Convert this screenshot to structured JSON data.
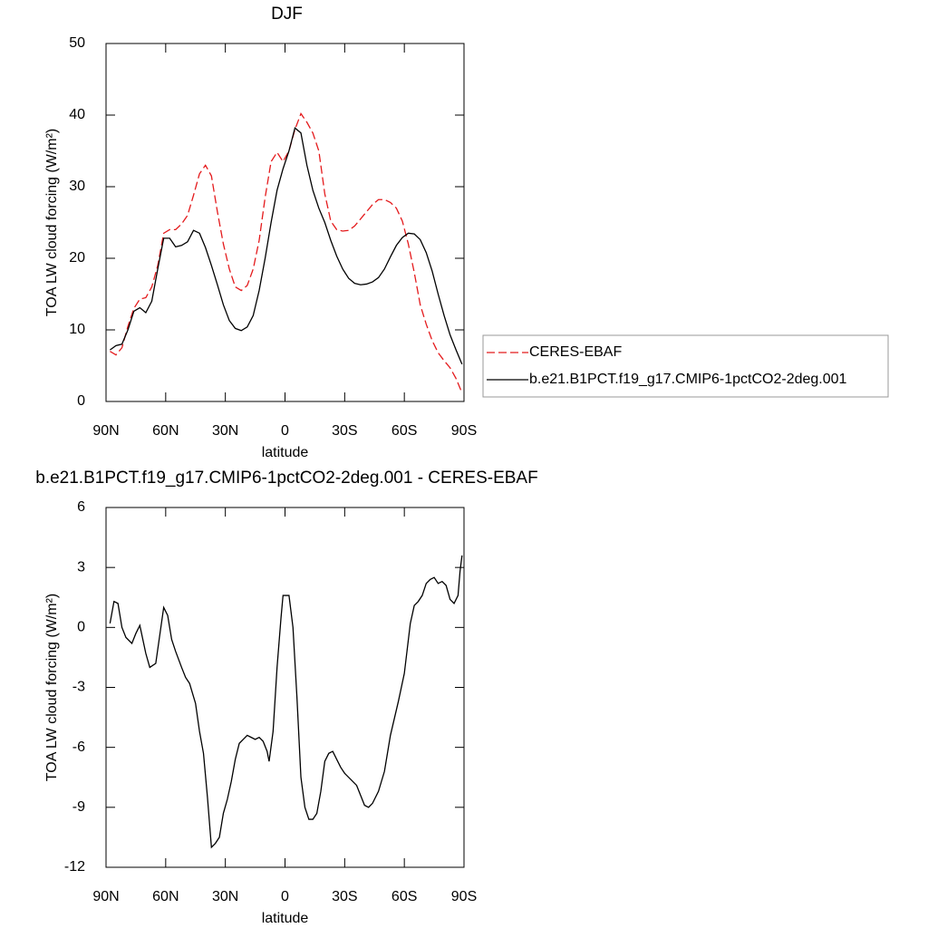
{
  "chart_data": [
    {
      "type": "line",
      "title": "DJF",
      "xlabel": "latitude",
      "ylabel": "TOA LW cloud forcing (W/m²)",
      "x": [
        88,
        85,
        82,
        79,
        76,
        73,
        70,
        67,
        64,
        61,
        58,
        55,
        52,
        49,
        46,
        43,
        40,
        37,
        34,
        31,
        28,
        25,
        22,
        19,
        16,
        13,
        10,
        7,
        4,
        1,
        -2,
        -5,
        -8,
        -11,
        -14,
        -17,
        -20,
        -23,
        -26,
        -29,
        -32,
        -35,
        -38,
        -41,
        -44,
        -47,
        -50,
        -53,
        -56,
        -59,
        -62,
        -65,
        -68,
        -71,
        -74,
        -77,
        -80,
        -83,
        -86,
        -89
      ],
      "series": [
        {
          "name": "CERES-EBAF",
          "color": "#e41a1c",
          "dash": true,
          "values": [
            7,
            6.5,
            7.5,
            10.5,
            13,
            14.3,
            14.5,
            16,
            19,
            23.5,
            24,
            24,
            24.8,
            26,
            28.8,
            31.8,
            33,
            31.5,
            26.5,
            22,
            18.5,
            16,
            15.5,
            16.2,
            18.5,
            22.5,
            28.5,
            33.5,
            34.8,
            33.5,
            35,
            38,
            40.2,
            39,
            37.5,
            35,
            29,
            25.2,
            24,
            23.8,
            23.9,
            24.5,
            25.5,
            26.5,
            27.5,
            28.2,
            28.2,
            27.8,
            27,
            25.2,
            22,
            18,
            13.5,
            10.8,
            8.5,
            6.8,
            5.7,
            4.7,
            3.2,
            1.2
          ]
        },
        {
          "name": "b.e21.B1PCT.f19_g17.CMIP6-1pctCO2-2deg.001",
          "color": "#000000",
          "dash": false,
          "values": [
            7.2,
            7.8,
            8,
            10,
            12.6,
            13.1,
            12.4,
            14,
            18.5,
            22.8,
            22.8,
            21.6,
            21.8,
            22.3,
            23.9,
            23.5,
            21.5,
            19,
            16.3,
            13.5,
            11.3,
            10.2,
            9.9,
            10.4,
            12,
            15.5,
            20,
            25,
            29.5,
            32.5,
            35,
            38.2,
            37.5,
            33,
            29.5,
            27,
            25,
            22.5,
            20.3,
            18.5,
            17.2,
            16.5,
            16.3,
            16.4,
            16.7,
            17.3,
            18.5,
            20.2,
            21.8,
            22.9,
            23.5,
            23.4,
            22.6,
            20.8,
            18.2,
            15,
            12,
            9.3,
            7.2,
            5.2
          ]
        }
      ],
      "xlim": [
        90,
        -90
      ],
      "xticks": [
        {
          "value": 90,
          "label": "90N"
        },
        {
          "value": 60,
          "label": "60N"
        },
        {
          "value": 30,
          "label": "30N"
        },
        0,
        {
          "value": -30,
          "label": "30S"
        },
        {
          "value": -60,
          "label": "60S"
        },
        {
          "value": -90,
          "label": "90S"
        }
      ],
      "ylim": [
        0,
        50
      ],
      "yticks": [
        0,
        10,
        20,
        30,
        40,
        50
      ],
      "legend": "right"
    },
    {
      "type": "line",
      "title": "b.e21.B1PCT.f19_g17.CMIP6-1pctCO2-2deg.001 - CERES-EBAF",
      "xlabel": "latitude",
      "ylabel": "TOA LW cloud forcing (W/m²)",
      "x": [
        88,
        86,
        84,
        82,
        80,
        77,
        75,
        73,
        70,
        68,
        65,
        62,
        61,
        59,
        57,
        55,
        52,
        50,
        48,
        45,
        43,
        41,
        39,
        37,
        35,
        33,
        31,
        29,
        27,
        25,
        23,
        21,
        19,
        17,
        15,
        13,
        11,
        9,
        8,
        6,
        4,
        2,
        1,
        -2,
        -4,
        -6,
        -8,
        -10,
        -12,
        -14,
        -16,
        -18,
        -20,
        -22,
        -24,
        -26,
        -28,
        -30,
        -33,
        -36,
        -38,
        -40,
        -42,
        -44,
        -47,
        -50,
        -53,
        -57,
        -60,
        -63,
        -65,
        -67,
        -69,
        -71,
        -73,
        -75,
        -77,
        -79,
        -81,
        -83,
        -85,
        -87,
        -88,
        -89
      ],
      "series": [
        {
          "name": "b.e21.B1PCT.f19_g17.CMIP6-1pctCO2-2deg.001 - CERES-EBAF",
          "color": "#000000",
          "dash": false,
          "values": [
            0.2,
            1.3,
            1.2,
            0,
            -0.5,
            -0.8,
            -0.3,
            0.1,
            -1.3,
            -2,
            -1.8,
            0.3,
            1,
            0.6,
            -0.6,
            -1.2,
            -2,
            -2.5,
            -2.8,
            -3.8,
            -5.2,
            -6.3,
            -8.5,
            -11,
            -10.8,
            -10.5,
            -9.3,
            -8.6,
            -7.7,
            -6.6,
            -5.8,
            -5.6,
            -5.4,
            -5.5,
            -5.6,
            -5.5,
            -5.7,
            -6.2,
            -6.7,
            -5.2,
            -2,
            0.5,
            1.6,
            1.6,
            0,
            -3.5,
            -7.5,
            -9,
            -9.6,
            -9.6,
            -9.3,
            -8.2,
            -6.7,
            -6.3,
            -6.2,
            -6.6,
            -7,
            -7.3,
            -7.6,
            -7.9,
            -8.4,
            -8.9,
            -9,
            -8.8,
            -8.2,
            -7.2,
            -5.4,
            -3.7,
            -2.3,
            0.2,
            1.1,
            1.3,
            1.6,
            2.2,
            2.4,
            2.5,
            2.2,
            2.3,
            2.1,
            1.4,
            1.2,
            1.6,
            2.8,
            3.6
          ]
        }
      ],
      "xlim": [
        90,
        -90
      ],
      "xticks": [
        {
          "value": 90,
          "label": "90N"
        },
        {
          "value": 60,
          "label": "60N"
        },
        {
          "value": 30,
          "label": "30N"
        },
        0,
        {
          "value": -30,
          "label": "30S"
        },
        {
          "value": -60,
          "label": "60S"
        },
        {
          "value": -90,
          "label": "90S"
        }
      ],
      "ylim": [
        -12,
        6
      ],
      "yticks": [
        -12,
        -9,
        -6,
        -3,
        0,
        3,
        6
      ]
    }
  ]
}
